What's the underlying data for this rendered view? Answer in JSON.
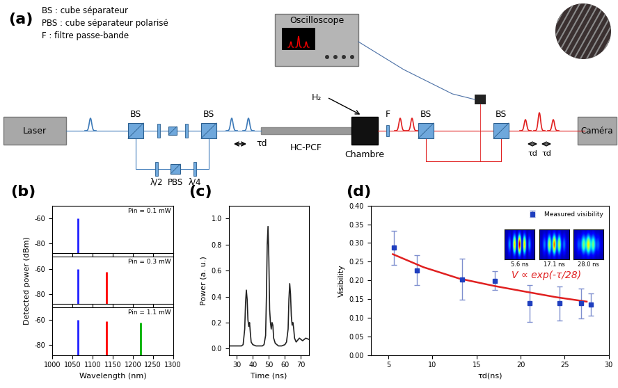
{
  "diagram": {
    "panel_label": "(a)",
    "legend_lines": [
      "BS : cube séparateur",
      "PBS : cube séparateur polarisé",
      "F : filtre passe-bande"
    ],
    "laser": "Laser",
    "oscilloscope": "Oscilloscope",
    "camera": "Caméra",
    "chamber": "Chambre",
    "fiber": "HC-PCF",
    "gas": "H₂",
    "filter": "F",
    "beam_splitters": [
      "BS",
      "BS",
      "BS",
      "BS"
    ],
    "lower_path": [
      "λ/2",
      "PBS",
      "λ/4"
    ],
    "delay_in": "τd",
    "delays_out": [
      "τd",
      "τd"
    ]
  },
  "panel_labels": [
    "(b)",
    "(c)",
    "(d)"
  ],
  "chart_data": [
    {
      "type": "stem",
      "annotation": "Pin = 0.1 mW",
      "xlim": [
        1000,
        1300
      ],
      "xticks": [
        1000,
        1050,
        1100,
        1150,
        1200,
        1250,
        1300
      ],
      "ylim": [
        -88,
        -50
      ],
      "yticks": [
        -80,
        -60
      ],
      "tick_labels": "y",
      "series": [
        {
          "color": "#1f1fff",
          "x": [
            1064
          ],
          "values": [
            -60
          ]
        }
      ]
    },
    {
      "type": "stem",
      "annotation": "Pin = 0.3 mW",
      "y_label": "Detected power (dBm)",
      "xlim": [
        1000,
        1300
      ],
      "xticks": [
        1000,
        1050,
        1100,
        1150,
        1200,
        1250,
        1300
      ],
      "ylim": [
        -88,
        -50
      ],
      "yticks": [
        -80,
        -60
      ],
      "tick_labels": "y",
      "series": [
        {
          "color": "#1f1fff",
          "x": [
            1064
          ],
          "values": [
            -60
          ]
        },
        {
          "color": "#ff0000",
          "x": [
            1135
          ],
          "values": [
            -62
          ]
        }
      ]
    },
    {
      "type": "stem",
      "annotation": "Pin = 1.1 mW",
      "x_label": "Wavelength (nm)",
      "xlim": [
        1000,
        1300
      ],
      "xticks": [
        1000,
        1050,
        1100,
        1150,
        1200,
        1250,
        1300
      ],
      "ylim": [
        -88,
        -50
      ],
      "yticks": [
        -80,
        -60
      ],
      "series": [
        {
          "color": "#1f1fff",
          "x": [
            1064
          ],
          "values": [
            -60
          ]
        },
        {
          "color": "#ff0000",
          "x": [
            1135
          ],
          "values": [
            -61
          ]
        },
        {
          "color": "#00b000",
          "x": [
            1220
          ],
          "values": [
            -62
          ]
        }
      ]
    },
    {
      "type": "line",
      "x_label": "Time (ns)",
      "y_label": "Power (a. u.)",
      "color": "#222222",
      "x": [
        25,
        30,
        33,
        34,
        35,
        35.5,
        36,
        36.5,
        37,
        37.5,
        38,
        38.5,
        39,
        40,
        42,
        44,
        46,
        47,
        48,
        48.5,
        49,
        49.5,
        50,
        50.5,
        51,
        51.5,
        52,
        52.5,
        53,
        54,
        56,
        58,
        60,
        61,
        62,
        62.5,
        63,
        63.5,
        64,
        64.5,
        65,
        65.5,
        66,
        67,
        69,
        71,
        73,
        75
      ],
      "values": [
        0.02,
        0.02,
        0.02,
        0.03,
        0.15,
        0.35,
        0.45,
        0.38,
        0.22,
        0.17,
        0.2,
        0.12,
        0.05,
        0.03,
        0.02,
        0.02,
        0.02,
        0.03,
        0.1,
        0.4,
        0.8,
        0.94,
        0.7,
        0.3,
        0.2,
        0.15,
        0.2,
        0.18,
        0.08,
        0.04,
        0.02,
        0.02,
        0.03,
        0.05,
        0.15,
        0.38,
        0.5,
        0.42,
        0.25,
        0.18,
        0.2,
        0.15,
        0.08,
        0.05,
        0.08,
        0.06,
        0.08,
        0.07
      ],
      "xlim": [
        25,
        75
      ],
      "xticks": [
        30,
        40,
        50,
        60,
        70
      ],
      "ylim": [
        -0.05,
        1.1
      ],
      "yticks": [
        {
          "value": 0,
          "label": "0.0"
        },
        0.2,
        0.4,
        0.6,
        0.8,
        {
          "value": 1,
          "label": "1.0"
        }
      ]
    },
    {
      "type": "scatter",
      "x_label": "τd(ns)",
      "y_label": "Visibility",
      "legend": "upper right",
      "annotation": "V ∝ exp(-τ/28)",
      "inset_labels": [
        "5.6 ns",
        "17.1 ns",
        "28.0 ns"
      ],
      "xlim": [
        3,
        30
      ],
      "xticks": [
        5,
        10,
        15,
        20,
        25,
        30
      ],
      "ylim": [
        0,
        0.4
      ],
      "yticks": [
        {
          "value": 0,
          "label": "0.00"
        },
        0.05,
        {
          "value": 0.1,
          "label": "0.10"
        },
        0.15,
        {
          "value": 0.2,
          "label": "0.20"
        },
        0.25,
        {
          "value": 0.3,
          "label": "0.30"
        },
        0.35,
        {
          "value": 0.4,
          "label": "0.40"
        }
      ],
      "series": [
        {
          "name": "Measured visibility",
          "type": "scatter",
          "marker": "square",
          "color": "#1f3fbf",
          "x": [
            5.6,
            8.2,
            13.4,
            17.1,
            21,
            24.4,
            26.9,
            28.0
          ],
          "values": [
            0.287,
            0.227,
            0.203,
            0.199,
            0.138,
            0.138,
            0.138,
            0.135
          ],
          "errors": [
            0.045,
            0.04,
            0.055,
            0.025,
            0.05,
            0.045,
            0.04,
            0.03
          ]
        },
        {
          "type": "line",
          "color": "#e02020",
          "x": [
            5.5,
            9,
            13,
            17,
            20,
            24,
            27.5
          ],
          "values": [
            0.27,
            0.235,
            0.205,
            0.185,
            0.172,
            0.155,
            0.143
          ]
        }
      ]
    }
  ]
}
